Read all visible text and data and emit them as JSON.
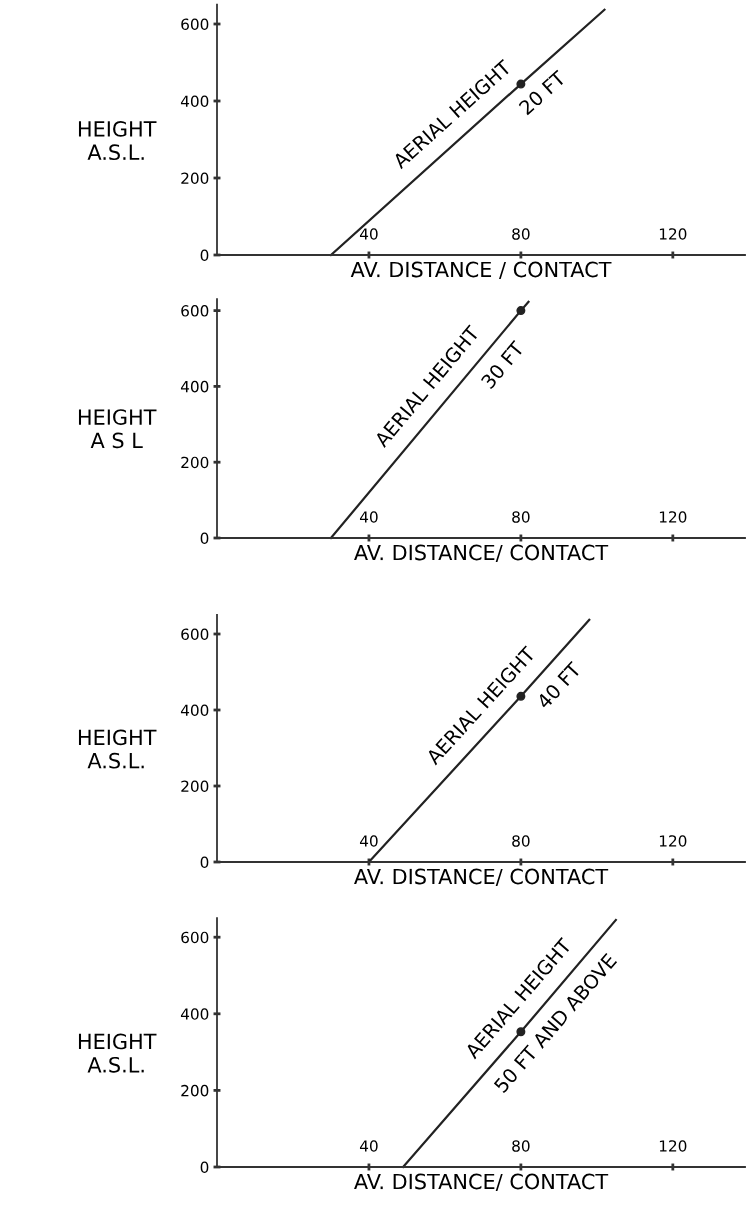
{
  "chart_data": [
    {
      "type": "line",
      "ylabel": "HEIGHT\nA.S.L.",
      "xlabel": "AV. DISTANCE / CONTACT",
      "xlim": [
        0,
        139
      ],
      "ylim": [
        0,
        650
      ],
      "xticks": [
        40,
        80,
        120
      ],
      "yticks": [
        0,
        200,
        400,
        600
      ],
      "grid": false,
      "series": [
        {
          "color": "#222222",
          "x": [
            30,
            80,
            102
          ],
          "values": [
            0,
            444,
            637
          ]
        },
        {
          "type": "scatter",
          "color": "#222222",
          "x": [
            80
          ],
          "values": [
            444
          ],
          "marker": "circle"
        }
      ],
      "annotations": [
        {
          "text": "AERIAL HEIGHT",
          "x": 66,
          "y": 320
        },
        {
          "text": "20 FT",
          "x": 82,
          "y": 460
        }
      ]
    },
    {
      "type": "line",
      "ylabel": "HEIGHT\nA S L",
      "xlabel": "AV. DISTANCE/ CONTACT",
      "xlim": [
        0,
        139
      ],
      "ylim": [
        0,
        630
      ],
      "xticks": [
        40,
        80,
        120
      ],
      "yticks": [
        0,
        200,
        400,
        600
      ],
      "grid": false,
      "series": [
        {
          "color": "#222222",
          "x": [
            30,
            80,
            82
          ],
          "values": [
            0,
            600,
            623
          ]
        },
        {
          "type": "scatter",
          "color": "#222222",
          "x": [
            80
          ],
          "values": [
            600
          ],
          "marker": "circle"
        }
      ],
      "annotations": [
        {
          "text": "AERIAL HEIGHT",
          "x": 60,
          "y": 360
        },
        {
          "text": "30 FT",
          "x": 71,
          "y": 490
        }
      ]
    },
    {
      "type": "line",
      "ylabel": "HEIGHT\nA.S.L.",
      "xlabel": "AV. DISTANCE/ CONTACT",
      "xlim": [
        0,
        139
      ],
      "ylim": [
        0,
        650
      ],
      "xticks": [
        40,
        80,
        120
      ],
      "yticks": [
        0,
        200,
        400,
        600
      ],
      "grid": false,
      "series": [
        {
          "color": "#222222",
          "x": [
            40,
            80,
            98
          ],
          "values": [
            0,
            436,
            637
          ]
        },
        {
          "type": "scatter",
          "color": "#222222",
          "x": [
            80
          ],
          "values": [
            436
          ],
          "marker": "circle"
        }
      ],
      "annotations": [
        {
          "text": "AERIAL HEIGHT",
          "x": 74,
          "y": 370
        },
        {
          "text": "40 FT",
          "x": 86,
          "y": 500
        }
      ]
    },
    {
      "type": "line",
      "ylabel": "HEIGHT\nA.S.L.",
      "xlabel": "AV. DISTANCE/ CONTACT",
      "xlim": [
        0,
        139
      ],
      "ylim": [
        0,
        650
      ],
      "xticks": [
        40,
        80,
        120
      ],
      "yticks": [
        0,
        200,
        400,
        600
      ],
      "grid": false,
      "series": [
        {
          "color": "#222222",
          "x": [
            49,
            80,
            105
          ],
          "values": [
            0,
            353,
            645
          ]
        },
        {
          "type": "scatter",
          "color": "#222222",
          "x": [
            80
          ],
          "values": [
            353
          ],
          "marker": "circle"
        }
      ],
      "annotations": [
        {
          "text": "AERIAL HEIGHT",
          "x": 84,
          "y": 400
        },
        {
          "text": "50 FT AND ABOVE",
          "x": 85,
          "y": 410
        }
      ]
    }
  ]
}
